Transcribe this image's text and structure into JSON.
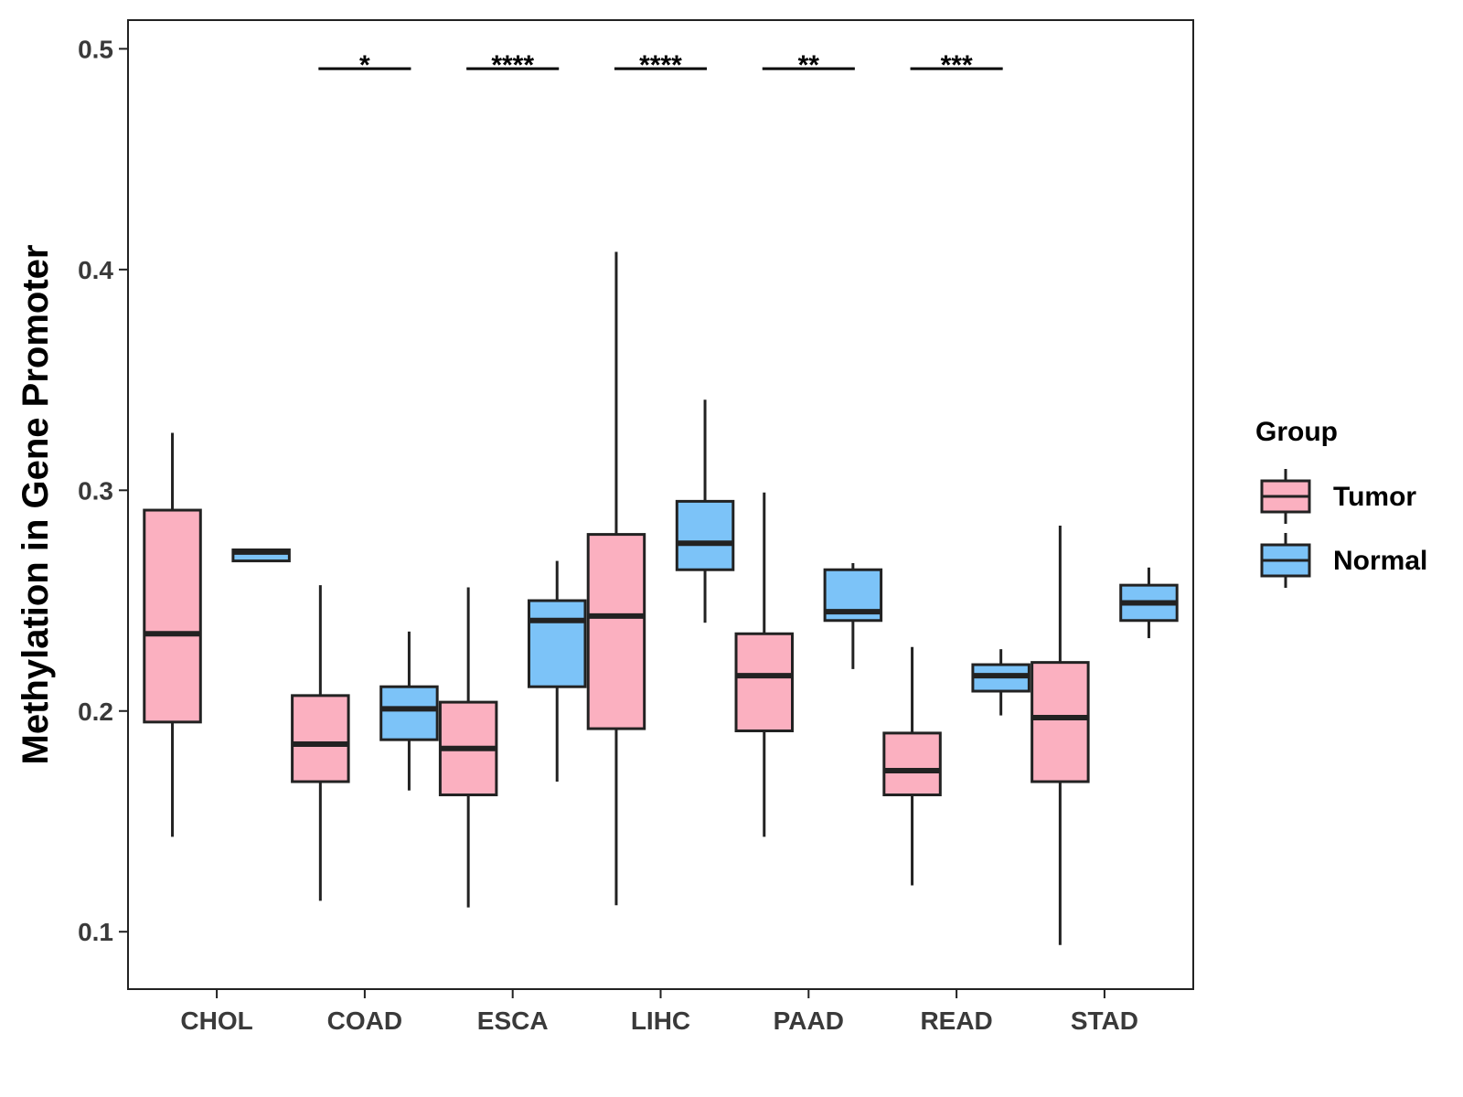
{
  "chart_data": {
    "type": "boxplot",
    "title": "",
    "xlabel": "",
    "ylabel": "Methylation in Gene Promoter",
    "ylim": [
      0.074,
      0.513
    ],
    "yticks": [
      0.1,
      0.2,
      0.3,
      0.4,
      0.5
    ],
    "ytick_labels": [
      "0.1",
      "0.2",
      "0.3",
      "0.4",
      "0.5"
    ],
    "grid": false,
    "legend_position": "right",
    "categories": [
      "CHOL",
      "COAD",
      "ESCA",
      "LIHC",
      "PAAD",
      "READ",
      "STAD"
    ],
    "series": [
      {
        "name": "Tumor",
        "color": "#FBB0C0",
        "boxes": [
          {
            "whisker_low": 0.143,
            "q1": 0.195,
            "median": 0.235,
            "q3": 0.291,
            "whisker_high": 0.326
          },
          {
            "whisker_low": 0.114,
            "q1": 0.168,
            "median": 0.185,
            "q3": 0.207,
            "whisker_high": 0.257
          },
          {
            "whisker_low": 0.111,
            "q1": 0.162,
            "median": 0.183,
            "q3": 0.204,
            "whisker_high": 0.256
          },
          {
            "whisker_low": 0.112,
            "q1": 0.192,
            "median": 0.243,
            "q3": 0.28,
            "whisker_high": 0.408
          },
          {
            "whisker_low": 0.143,
            "q1": 0.191,
            "median": 0.216,
            "q3": 0.235,
            "whisker_high": 0.299
          },
          {
            "whisker_low": 0.121,
            "q1": 0.162,
            "median": 0.173,
            "q3": 0.19,
            "whisker_high": 0.229
          },
          {
            "whisker_low": 0.094,
            "q1": 0.168,
            "median": 0.197,
            "q3": 0.222,
            "whisker_high": 0.284
          }
        ]
      },
      {
        "name": "Normal",
        "color": "#7CC3F8",
        "boxes": [
          {
            "whisker_low": 0.268,
            "q1": 0.268,
            "median": 0.272,
            "q3": 0.273,
            "whisker_high": 0.273
          },
          {
            "whisker_low": 0.164,
            "q1": 0.187,
            "median": 0.201,
            "q3": 0.211,
            "whisker_high": 0.236
          },
          {
            "whisker_low": 0.168,
            "q1": 0.211,
            "median": 0.241,
            "q3": 0.25,
            "whisker_high": 0.268
          },
          {
            "whisker_low": 0.24,
            "q1": 0.264,
            "median": 0.276,
            "q3": 0.295,
            "whisker_high": 0.341
          },
          {
            "whisker_low": 0.219,
            "q1": 0.241,
            "median": 0.245,
            "q3": 0.264,
            "whisker_high": 0.267
          },
          {
            "whisker_low": 0.198,
            "q1": 0.209,
            "median": 0.216,
            "q3": 0.221,
            "whisker_high": 0.228
          },
          {
            "whisker_low": 0.233,
            "q1": 0.241,
            "median": 0.249,
            "q3": 0.257,
            "whisker_high": 0.265
          }
        ]
      }
    ],
    "significance": [
      {
        "category": "COAD",
        "label": "*"
      },
      {
        "category": "ESCA",
        "label": "****"
      },
      {
        "category": "LIHC",
        "label": "****"
      },
      {
        "category": "PAAD",
        "label": "**"
      },
      {
        "category": "READ",
        "label": "***"
      }
    ],
    "significance_level": 0.491,
    "legend": {
      "title": "Group",
      "entries": [
        {
          "label": "Tumor",
          "color": "#FBB0C0"
        },
        {
          "label": "Normal",
          "color": "#7CC3F8"
        }
      ]
    }
  }
}
